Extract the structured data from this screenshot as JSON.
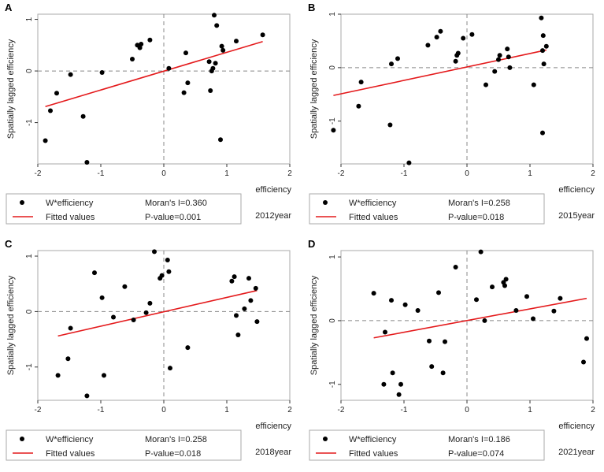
{
  "colors": {
    "point": "#000000",
    "fit": "#e41a1c",
    "frame": "#aaaaaa",
    "ref": "#888888"
  },
  "chart_data": [
    {
      "panel": "A",
      "type": "scatter",
      "xlabel": "efficiency",
      "ylabel": "Spatially lagged efficiency",
      "xlim": [
        -2,
        2
      ],
      "ylim": [
        -1.8,
        1.1
      ],
      "xticks": [
        -2,
        -1,
        0,
        1,
        2
      ],
      "yticks": [
        -1,
        0,
        1
      ],
      "x_tick_labels": [
        "-2",
        "-1",
        "0",
        "1",
        "2"
      ],
      "y_tick_labels": [
        "-1",
        "0",
        "1"
      ],
      "reference_lines": {
        "x": 0,
        "y": 0
      },
      "points": [
        [
          -1.88,
          -1.35
        ],
        [
          -1.8,
          -0.77
        ],
        [
          -1.7,
          -0.43
        ],
        [
          -1.48,
          -0.07
        ],
        [
          -1.28,
          -0.88
        ],
        [
          -1.22,
          -1.77
        ],
        [
          -0.98,
          -0.03
        ],
        [
          -0.5,
          0.23
        ],
        [
          -0.42,
          0.5
        ],
        [
          -0.38,
          0.45
        ],
        [
          -0.36,
          0.52
        ],
        [
          -0.22,
          0.6
        ],
        [
          0.08,
          0.05
        ],
        [
          0.32,
          -0.42
        ],
        [
          0.35,
          0.35
        ],
        [
          0.38,
          -0.23
        ],
        [
          0.72,
          0.18
        ],
        [
          0.74,
          -0.38
        ],
        [
          0.76,
          0.0
        ],
        [
          0.78,
          0.05
        ],
        [
          0.8,
          1.08
        ],
        [
          0.82,
          0.15
        ],
        [
          0.84,
          0.88
        ],
        [
          0.9,
          -1.33
        ],
        [
          0.92,
          0.48
        ],
        [
          0.94,
          0.4
        ],
        [
          1.15,
          0.58
        ],
        [
          1.57,
          0.7
        ]
      ],
      "fit": [
        [
          -1.88,
          -0.69
        ],
        [
          1.57,
          0.57
        ]
      ],
      "legend": {
        "point_label": "W*efficiency",
        "line_label": "Fitted values",
        "moran": "Moran's I=0.360",
        "pvalue": "P-value=0.001"
      },
      "year": "2012year"
    },
    {
      "panel": "B",
      "type": "scatter",
      "xlabel": "efficiency",
      "ylabel": "Spatially lagged efficiency",
      "xlim": [
        -2,
        2
      ],
      "ylim": [
        -1.8,
        1.0
      ],
      "xticks": [
        -2,
        -1,
        0,
        1,
        2
      ],
      "yticks": [
        -1,
        0,
        1
      ],
      "x_tick_labels": [
        "-2",
        "-1",
        "0",
        "1",
        "2"
      ],
      "y_tick_labels": [
        "-1",
        "0",
        "1"
      ],
      "reference_lines": {
        "x": 0,
        "y": 0
      },
      "points": [
        [
          -2.12,
          -1.17
        ],
        [
          -1.72,
          -0.72
        ],
        [
          -1.68,
          -0.27
        ],
        [
          -1.22,
          -1.07
        ],
        [
          -1.2,
          0.07
        ],
        [
          -1.1,
          0.17
        ],
        [
          -0.92,
          -1.78
        ],
        [
          -0.62,
          0.42
        ],
        [
          -0.48,
          0.57
        ],
        [
          -0.42,
          0.68
        ],
        [
          -0.18,
          0.12
        ],
        [
          -0.16,
          0.23
        ],
        [
          -0.14,
          0.27
        ],
        [
          -0.06,
          0.55
        ],
        [
          0.08,
          0.62
        ],
        [
          0.3,
          -0.32
        ],
        [
          0.44,
          -0.07
        ],
        [
          0.5,
          0.15
        ],
        [
          0.52,
          0.23
        ],
        [
          0.64,
          0.35
        ],
        [
          0.66,
          0.2
        ],
        [
          0.68,
          0.0
        ],
        [
          1.06,
          -0.32
        ],
        [
          1.18,
          0.93
        ],
        [
          1.2,
          0.32
        ],
        [
          1.21,
          0.6
        ],
        [
          1.22,
          0.07
        ],
        [
          1.26,
          0.4
        ],
        [
          1.2,
          -1.22
        ]
      ],
      "fit": [
        [
          -2.12,
          -0.52
        ],
        [
          1.26,
          0.33
        ]
      ],
      "legend": {
        "point_label": "W*efficiency",
        "line_label": "Fitted values",
        "moran": "Moran's I=0.258",
        "pvalue": "P-value=0.018"
      },
      "year": "2015year"
    },
    {
      "panel": "C",
      "type": "scatter",
      "xlabel": "efficiency",
      "ylabel": "Spatially lagged efficiency",
      "xlim": [
        -2,
        2
      ],
      "ylim": [
        -1.6,
        1.1
      ],
      "xticks": [
        -2,
        -1,
        0,
        1,
        2
      ],
      "yticks": [
        -1,
        0,
        1
      ],
      "x_tick_labels": [
        "-2",
        "-1",
        "0",
        "1",
        "2"
      ],
      "y_tick_labels": [
        "-1",
        "0",
        "1"
      ],
      "reference_lines": {
        "x": 0,
        "y": 0
      },
      "points": [
        [
          -1.68,
          -1.15
        ],
        [
          -1.52,
          -0.85
        ],
        [
          -1.48,
          -0.3
        ],
        [
          -1.22,
          -1.52
        ],
        [
          -1.1,
          0.7
        ],
        [
          -0.98,
          0.25
        ],
        [
          -0.95,
          -1.15
        ],
        [
          -0.8,
          -0.1
        ],
        [
          -0.62,
          0.45
        ],
        [
          -0.48,
          -0.15
        ],
        [
          -0.28,
          -0.02
        ],
        [
          -0.22,
          0.15
        ],
        [
          -0.15,
          1.08
        ],
        [
          -0.06,
          0.6
        ],
        [
          -0.03,
          0.65
        ],
        [
          0.06,
          0.93
        ],
        [
          0.08,
          0.72
        ],
        [
          0.1,
          -1.02
        ],
        [
          0.38,
          -0.65
        ],
        [
          1.08,
          0.55
        ],
        [
          1.12,
          0.63
        ],
        [
          1.15,
          -0.07
        ],
        [
          1.18,
          -0.42
        ],
        [
          1.28,
          0.05
        ],
        [
          1.35,
          0.6
        ],
        [
          1.38,
          0.2
        ],
        [
          1.46,
          0.42
        ],
        [
          1.48,
          -0.18
        ]
      ],
      "fit": [
        [
          -1.68,
          -0.44
        ],
        [
          1.48,
          0.38
        ]
      ],
      "legend": {
        "point_label": "W*efficiency",
        "line_label": "Fitted values",
        "moran": "Moran's I=0.258",
        "pvalue": "P-value=0.018"
      },
      "year": "2018year"
    },
    {
      "panel": "D",
      "type": "scatter",
      "xlabel": "efficiency",
      "ylabel": "Spatially lagged efficiency",
      "xlim": [
        -2,
        2
      ],
      "ylim": [
        -1.25,
        1.1
      ],
      "xticks": [
        -2,
        -1,
        0,
        1,
        2
      ],
      "yticks": [
        -1,
        0,
        1
      ],
      "x_tick_labels": [
        "-2",
        "-1",
        "0",
        "1",
        "2"
      ],
      "y_tick_labels": [
        "-1",
        "0",
        "1"
      ],
      "reference_lines": {
        "x": 0,
        "y": 0
      },
      "points": [
        [
          -1.48,
          0.43
        ],
        [
          -1.32,
          -1.0
        ],
        [
          -1.3,
          -0.18
        ],
        [
          -1.2,
          0.32
        ],
        [
          -1.18,
          -0.82
        ],
        [
          -1.08,
          -1.16
        ],
        [
          -1.05,
          -1.0
        ],
        [
          -0.98,
          0.25
        ],
        [
          -0.78,
          0.16
        ],
        [
          -0.6,
          -0.32
        ],
        [
          -0.56,
          -0.72
        ],
        [
          -0.45,
          0.44
        ],
        [
          -0.38,
          -0.82
        ],
        [
          -0.35,
          -0.33
        ],
        [
          -0.18,
          0.84
        ],
        [
          0.15,
          0.33
        ],
        [
          0.22,
          1.08
        ],
        [
          0.28,
          0.0
        ],
        [
          0.4,
          0.53
        ],
        [
          0.58,
          0.6
        ],
        [
          0.6,
          0.55
        ],
        [
          0.62,
          0.65
        ],
        [
          0.78,
          0.16
        ],
        [
          0.95,
          0.38
        ],
        [
          1.05,
          0.03
        ],
        [
          1.38,
          0.15
        ],
        [
          1.48,
          0.35
        ],
        [
          1.85,
          -0.65
        ],
        [
          1.9,
          -0.28
        ]
      ],
      "fit": [
        [
          -1.48,
          -0.27
        ],
        [
          1.9,
          0.35
        ]
      ],
      "legend": {
        "point_label": "W*efficiency",
        "line_label": "Fitted values",
        "moran": "Moran's I=0.186",
        "pvalue": "P-value=0.074"
      },
      "year": "2021year"
    }
  ]
}
